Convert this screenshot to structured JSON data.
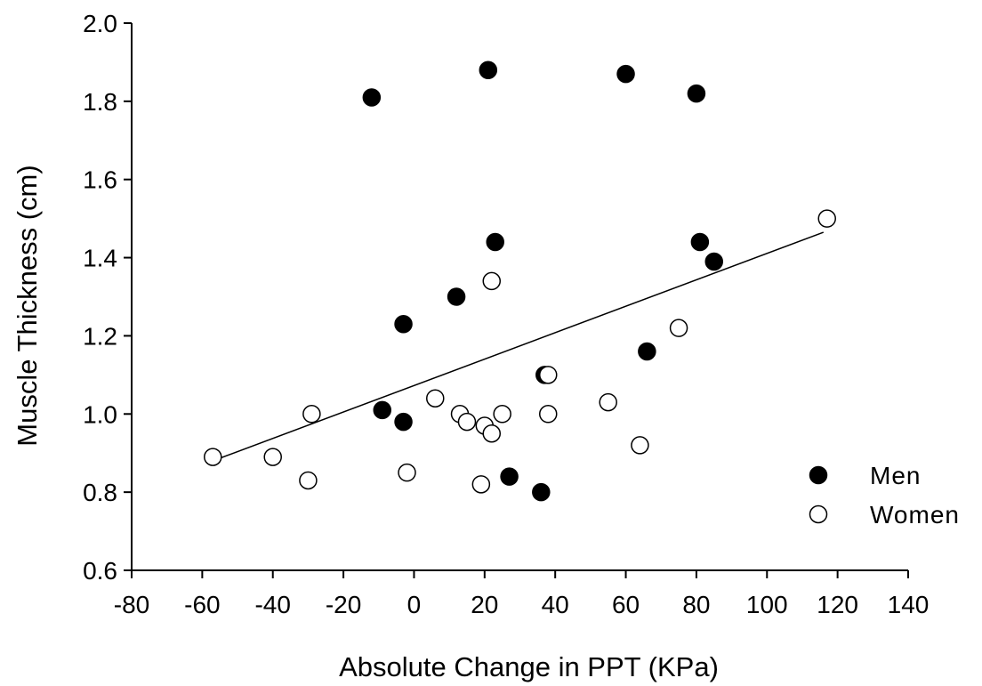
{
  "chart_data": {
    "type": "scatter",
    "title": "",
    "xlabel": "Absolute Change in PPT (KPa)",
    "ylabel": "Muscle Thickness (cm)",
    "xlim": [
      -80,
      140
    ],
    "ylim": [
      0.6,
      2.0
    ],
    "x_ticks": [
      "-80",
      "-60",
      "-40",
      "-20",
      "0",
      "20",
      "40",
      "60",
      "80",
      "100",
      "120",
      "140"
    ],
    "y_ticks": [
      "0.6",
      "0.8",
      "1.0",
      "1.2",
      "1.4",
      "1.6",
      "1.8",
      "2.0"
    ],
    "grid": false,
    "legend_position": "bottom-right",
    "series": [
      {
        "name": "Men",
        "marker": "filled-circle",
        "color": "#000000",
        "points": [
          [
            -12,
            1.81
          ],
          [
            21,
            1.88
          ],
          [
            60,
            1.87
          ],
          [
            80,
            1.82
          ],
          [
            23,
            1.44
          ],
          [
            81,
            1.44
          ],
          [
            85,
            1.39
          ],
          [
            12,
            1.3
          ],
          [
            -3,
            1.23
          ],
          [
            66,
            1.16
          ],
          [
            37,
            1.1
          ],
          [
            -9,
            1.01
          ],
          [
            -3,
            0.98
          ],
          [
            27,
            0.84
          ],
          [
            36,
            0.8
          ]
        ]
      },
      {
        "name": "Women",
        "marker": "open-circle",
        "color": "#ffffff",
        "points": [
          [
            117,
            1.5
          ],
          [
            22,
            1.34
          ],
          [
            75,
            1.22
          ],
          [
            38,
            1.1
          ],
          [
            6,
            1.04
          ],
          [
            55,
            1.03
          ],
          [
            -29,
            1.0
          ],
          [
            13,
            1.0
          ],
          [
            25,
            1.0
          ],
          [
            38,
            1.0
          ],
          [
            15,
            0.98
          ],
          [
            20,
            0.97
          ],
          [
            22,
            0.95
          ],
          [
            64,
            0.92
          ],
          [
            -57,
            0.89
          ],
          [
            -40,
            0.89
          ],
          [
            -2,
            0.85
          ],
          [
            -30,
            0.83
          ],
          [
            19,
            0.82
          ]
        ]
      }
    ],
    "trendline": {
      "x": [
        -57,
        116
      ],
      "y": [
        0.88,
        1.465
      ]
    }
  }
}
